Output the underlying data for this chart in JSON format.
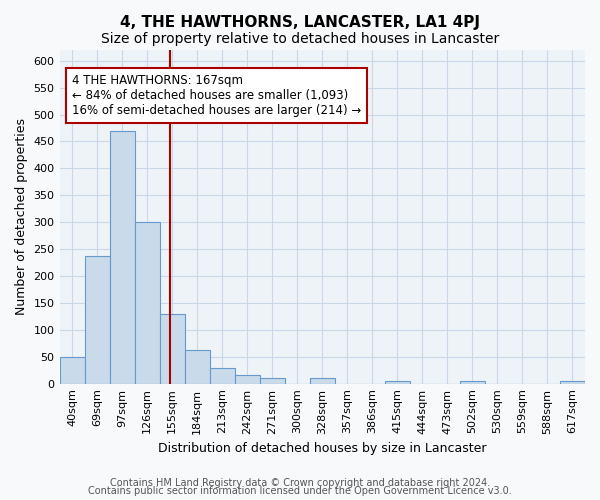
{
  "title": "4, THE HAWTHORNS, LANCASTER, LA1 4PJ",
  "subtitle": "Size of property relative to detached houses in Lancaster",
  "xlabel": "Distribution of detached houses by size in Lancaster",
  "ylabel": "Number of detached properties",
  "bar_labels": [
    "40sqm",
    "69sqm",
    "97sqm",
    "126sqm",
    "155sqm",
    "184sqm",
    "213sqm",
    "242sqm",
    "271sqm",
    "300sqm",
    "328sqm",
    "357sqm",
    "386sqm",
    "415sqm",
    "444sqm",
    "473sqm",
    "502sqm",
    "530sqm",
    "559sqm",
    "588sqm",
    "617sqm"
  ],
  "bar_values": [
    50,
    238,
    470,
    300,
    130,
    63,
    30,
    16,
    10,
    0,
    10,
    0,
    0,
    5,
    0,
    0,
    5,
    0,
    0,
    0,
    5
  ],
  "bar_color": "#c9daea",
  "bar_edge_color": "#6699cc",
  "grid_color": "#c8d8e8",
  "background_color": "#eef3f8",
  "fig_background_color": "#f8f9fb",
  "vline_color": "#aa0000",
  "annotation_line1": "4 THE HAWTHORNS: 167sqm",
  "annotation_line2": "← 84% of detached houses are smaller (1,093)",
  "annotation_line3": "16% of semi-detached houses are larger (214) →",
  "annotation_box_color": "#ffffff",
  "annotation_box_edge": "#aa0000",
  "ylim": [
    0,
    620
  ],
  "yticks": [
    0,
    50,
    100,
    150,
    200,
    250,
    300,
    350,
    400,
    450,
    500,
    550,
    600
  ],
  "footer_line1": "Contains HM Land Registry data © Crown copyright and database right 2024.",
  "footer_line2": "Contains public sector information licensed under the Open Government Licence v3.0.",
  "title_fontsize": 11,
  "subtitle_fontsize": 10,
  "xlabel_fontsize": 9,
  "ylabel_fontsize": 9,
  "tick_fontsize": 8,
  "annotation_fontsize": 8.5,
  "footer_fontsize": 7
}
